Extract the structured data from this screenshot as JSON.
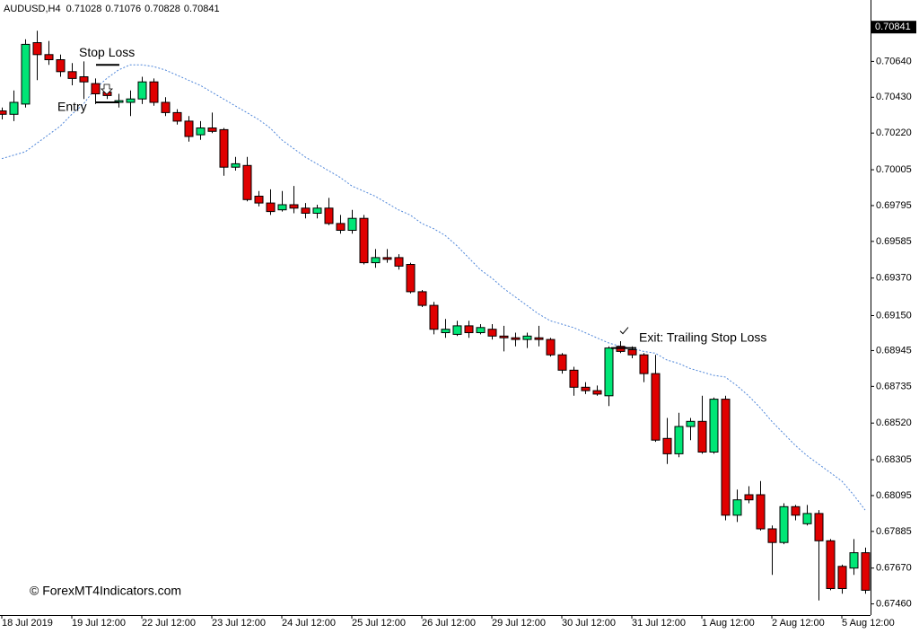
{
  "chart_data": {
    "type": "candlestick",
    "symbol": "AUDUSD,H4",
    "header_ohlc": [
      0.71028,
      0.71076,
      0.70828,
      0.70841
    ],
    "current_price": 0.70841,
    "watermark": "© ForexMT4Indicators.com",
    "bull_color": "#00e676",
    "bear_color": "#e00000",
    "ylim": [
      0.674,
      0.71
    ],
    "yticks": [
      {
        "value": 0.7064,
        "label": "0.70640"
      },
      {
        "value": 0.7043,
        "label": "0.70430"
      },
      {
        "value": 0.7022,
        "label": "0.70220"
      },
      0.70005,
      0.69795,
      0.69585,
      {
        "value": 0.6937,
        "label": "0.69370"
      },
      {
        "value": 0.6915,
        "label": "0.69150"
      },
      0.68945,
      0.68735,
      {
        "value": 0.6852,
        "label": "0.68520"
      },
      0.68305,
      0.68095,
      0.67885,
      {
        "value": 0.6767,
        "label": "0.67670"
      },
      {
        "value": 0.6746,
        "label": "0.67460"
      }
    ],
    "categories": [
      "18 Jul 2019",
      null,
      null,
      null,
      null,
      null,
      "19 Jul 12:00",
      null,
      null,
      null,
      null,
      null,
      "22 Jul 12:00",
      null,
      null,
      null,
      null,
      null,
      "23 Jul 12:00",
      null,
      null,
      null,
      null,
      null,
      "24 Jul 12:00",
      null,
      null,
      null,
      null,
      null,
      "25 Jul 12:00",
      null,
      null,
      null,
      null,
      null,
      "26 Jul 12:00",
      null,
      null,
      null,
      null,
      null,
      "29 Jul 12:00",
      null,
      null,
      null,
      null,
      null,
      "30 Jul 12:00",
      null,
      null,
      null,
      null,
      null,
      "31 Jul 12:00",
      null,
      null,
      null,
      null,
      null,
      "1 Aug 12:00",
      null,
      null,
      null,
      null,
      null,
      "2 Aug 12:00",
      null,
      null,
      null,
      null,
      null,
      "5 Aug 12:00",
      null,
      null
    ],
    "open": [
      0.7035,
      0.7033,
      0.7039,
      0.7075,
      0.7068,
      0.7065,
      0.7058,
      0.7055,
      0.7051,
      0.7046,
      0.704,
      0.704,
      0.7042,
      0.7052,
      0.704,
      0.7034,
      0.7029,
      0.7021,
      0.7025,
      0.7024,
      0.7002,
      0.7003,
      0.6985,
      0.6981,
      0.6977,
      0.698,
      0.6978,
      0.6975,
      0.6978,
      0.6969,
      0.6965,
      0.6972,
      0.6946,
      0.6949,
      0.6949,
      0.6945,
      0.6929,
      0.6921,
      0.6905,
      0.6904,
      0.6909,
      0.6905,
      0.6907,
      0.6903,
      0.6902,
      0.6901,
      0.6902,
      0.6901,
      0.6892,
      0.6883,
      0.6873,
      0.6871,
      0.6868,
      0.6897,
      0.6895,
      0.6892,
      0.6881,
      0.6843,
      0.6834,
      0.685,
      0.6853,
      0.6835,
      0.6866,
      0.6798,
      0.681,
      0.681,
      0.679,
      0.6782,
      0.6803,
      0.6793,
      0.6799,
      0.6783,
      0.6768,
      0.6767,
      0.6776
    ],
    "high": [
      0.7037,
      0.7047,
      0.7077,
      0.7082,
      0.7076,
      0.7068,
      0.7063,
      0.7064,
      0.7054,
      0.705,
      0.7045,
      0.7047,
      0.7055,
      0.7054,
      0.7043,
      0.7036,
      0.7032,
      0.7029,
      0.7034,
      0.7025,
      0.7008,
      0.7008,
      0.6988,
      0.6989,
      0.6988,
      0.6991,
      0.6981,
      0.698,
      0.6984,
      0.6974,
      0.6977,
      0.6974,
      0.6954,
      0.6954,
      0.6951,
      0.6946,
      0.693,
      0.6923,
      0.6913,
      0.6912,
      0.6912,
      0.691,
      0.691,
      0.6909,
      0.6905,
      0.6905,
      0.6909,
      0.6902,
      0.6893,
      0.6885,
      0.6876,
      0.6874,
      0.6897,
      0.69,
      0.6897,
      0.6893,
      0.6892,
      0.6855,
      0.6858,
      0.6855,
      0.6868,
      0.6867,
      0.6868,
      0.6813,
      0.6815,
      0.6818,
      0.6792,
      0.6805,
      0.6804,
      0.6804,
      0.6801,
      0.6784,
      0.6769,
      0.6784,
      0.6779
    ],
    "low": [
      0.703,
      0.7029,
      0.7037,
      0.7053,
      0.7062,
      0.7055,
      0.705,
      0.7042,
      0.7039,
      0.7042,
      0.7037,
      0.7032,
      0.7039,
      0.7038,
      0.7032,
      0.7027,
      0.7017,
      0.7018,
      0.7022,
      0.6997,
      0.7,
      0.6982,
      0.6979,
      0.6974,
      0.6976,
      0.6975,
      0.6972,
      0.6972,
      0.6968,
      0.6963,
      0.6963,
      0.6945,
      0.6943,
      0.6946,
      0.6942,
      0.6928,
      0.692,
      0.6904,
      0.6902,
      0.6903,
      0.6902,
      0.6904,
      0.6901,
      0.6894,
      0.6897,
      0.6896,
      0.6897,
      0.6891,
      0.6881,
      0.6868,
      0.6869,
      0.6868,
      0.6862,
      0.6893,
      0.689,
      0.6876,
      0.6841,
      0.6828,
      0.6832,
      0.6842,
      0.6834,
      0.6834,
      0.6795,
      0.6794,
      0.6805,
      0.6789,
      0.6763,
      0.6781,
      0.6795,
      0.6792,
      0.6748,
      0.6754,
      0.6752,
      0.6763,
      0.6752
    ],
    "close": [
      0.7033,
      0.704,
      0.7074,
      0.7068,
      0.7065,
      0.7058,
      0.7054,
      0.7052,
      0.7045,
      0.7044,
      0.7041,
      0.7042,
      0.7052,
      0.704,
      0.7034,
      0.7029,
      0.702,
      0.7025,
      0.7023,
      0.7002,
      0.7004,
      0.6983,
      0.6981,
      0.6976,
      0.698,
      0.6978,
      0.6975,
      0.6978,
      0.6969,
      0.6965,
      0.6972,
      0.6946,
      0.6949,
      0.6948,
      0.6944,
      0.6929,
      0.6921,
      0.6907,
      0.6907,
      0.6909,
      0.6905,
      0.6908,
      0.6903,
      0.6902,
      0.6901,
      0.6903,
      0.6901,
      0.6892,
      0.6883,
      0.6873,
      0.6871,
      0.6869,
      0.6896,
      0.6894,
      0.6892,
      0.6881,
      0.6842,
      0.6834,
      0.685,
      0.6853,
      0.6835,
      0.6866,
      0.6798,
      0.6807,
      0.6807,
      0.679,
      0.6782,
      0.6803,
      0.6798,
      0.6799,
      0.6783,
      0.6755,
      0.6755,
      0.6776,
      0.6754
    ],
    "ma": {
      "color": "#4f86d9",
      "values": [
        0.7007,
        0.7009,
        0.7011,
        0.7016,
        0.7021,
        0.7026,
        0.7033,
        0.7039,
        0.7048,
        0.7054,
        0.7059,
        0.7062,
        0.7062,
        0.7061,
        0.7059,
        0.7056,
        0.7053,
        0.705,
        0.7046,
        0.7042,
        0.7038,
        0.7034,
        0.703,
        0.7025,
        0.7018,
        0.7013,
        0.7008,
        0.7004,
        0.7,
        0.6996,
        0.6991,
        0.6988,
        0.6985,
        0.6981,
        0.6977,
        0.6974,
        0.6969,
        0.6966,
        0.6962,
        0.6956,
        0.6949,
        0.6942,
        0.6937,
        0.6931,
        0.6926,
        0.6921,
        0.6916,
        0.6912,
        0.691,
        0.6908,
        0.6905,
        0.6902,
        0.6899,
        0.6897,
        0.6896,
        0.6894,
        0.6893,
        0.6889,
        0.6887,
        0.6884,
        0.6882,
        0.688,
        0.6879,
        0.6874,
        0.6868,
        0.6861,
        0.6853,
        0.6846,
        0.6839,
        0.6833,
        0.6828,
        0.6823,
        0.6818,
        0.681,
        0.6801
      ]
    },
    "annotations": [
      {
        "text": "Stop Loss",
        "value": 0.7062,
        "candle": 9
      },
      {
        "text": "Entry",
        "value": 0.704,
        "candle": 9
      },
      {
        "text": "Exit: Trailing Stop Loss",
        "value": 0.6896,
        "candle": 53
      }
    ]
  }
}
